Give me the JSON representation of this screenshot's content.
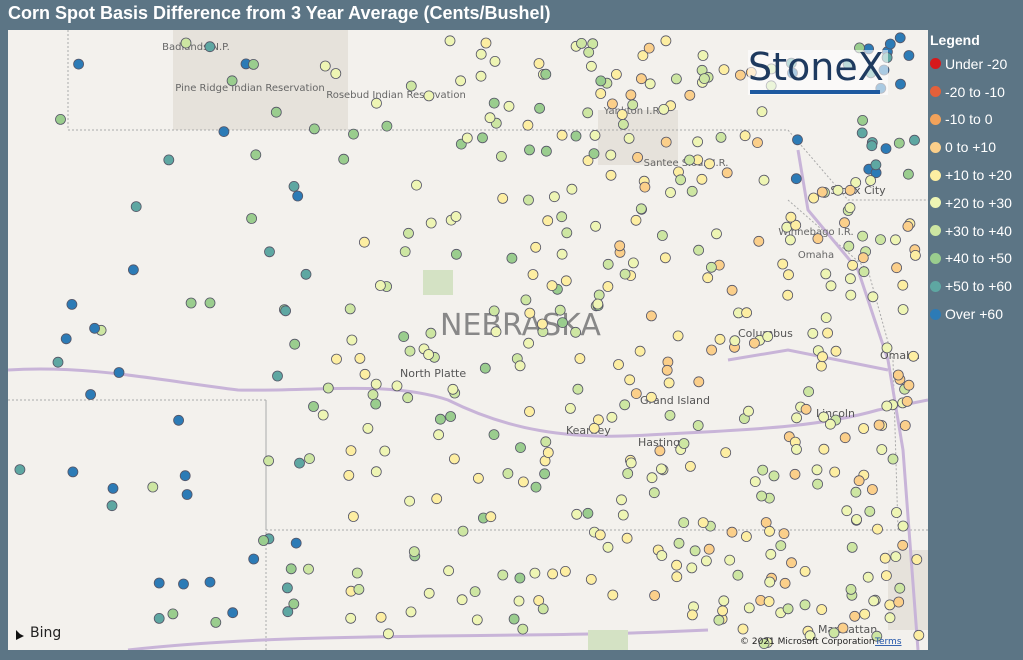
{
  "header": {
    "title": "Corn Spot Basis Difference from 3 Year Average (Cents/Bushel)"
  },
  "legend": {
    "title": "Legend",
    "items": [
      {
        "label": "Under -20",
        "color": "#d7191c"
      },
      {
        "label": "-20 to -10",
        "color": "#e4603a"
      },
      {
        "label": "-10 to 0",
        "color": "#f2a25a"
      },
      {
        "label": "0 to +10",
        "color": "#fbcf8a"
      },
      {
        "label": "+10 to +20",
        "color": "#fdeea2"
      },
      {
        "label": "+20 to +30",
        "color": "#eef5b4"
      },
      {
        "label": "+30 to +40",
        "color": "#cde6a2"
      },
      {
        "label": "+40 to +50",
        "color": "#9acd8e"
      },
      {
        "label": "+50 to +60",
        "color": "#5ea7a2"
      },
      {
        "label": "Over +60",
        "color": "#2c7bb6"
      }
    ]
  },
  "map": {
    "labels": [
      "Badlands N.P.",
      "Pine Ridge Indian Reservation",
      "Rosebud Indian Reservation",
      "Yankton I.R.",
      "Santee Sioux I.R.",
      "Sioux City",
      "Winnebago I.R.",
      "Omaha",
      "NEBRASKA",
      "North Platte",
      "Columbus",
      "Omaha",
      "Grand Island",
      "Kearney",
      "Hastings",
      "Lincoln",
      "Manhattan"
    ],
    "logo": "StoneX",
    "provider": "Bing",
    "copyright": "© 2021 Microsoft Corporation",
    "terms": "Terms"
  }
}
